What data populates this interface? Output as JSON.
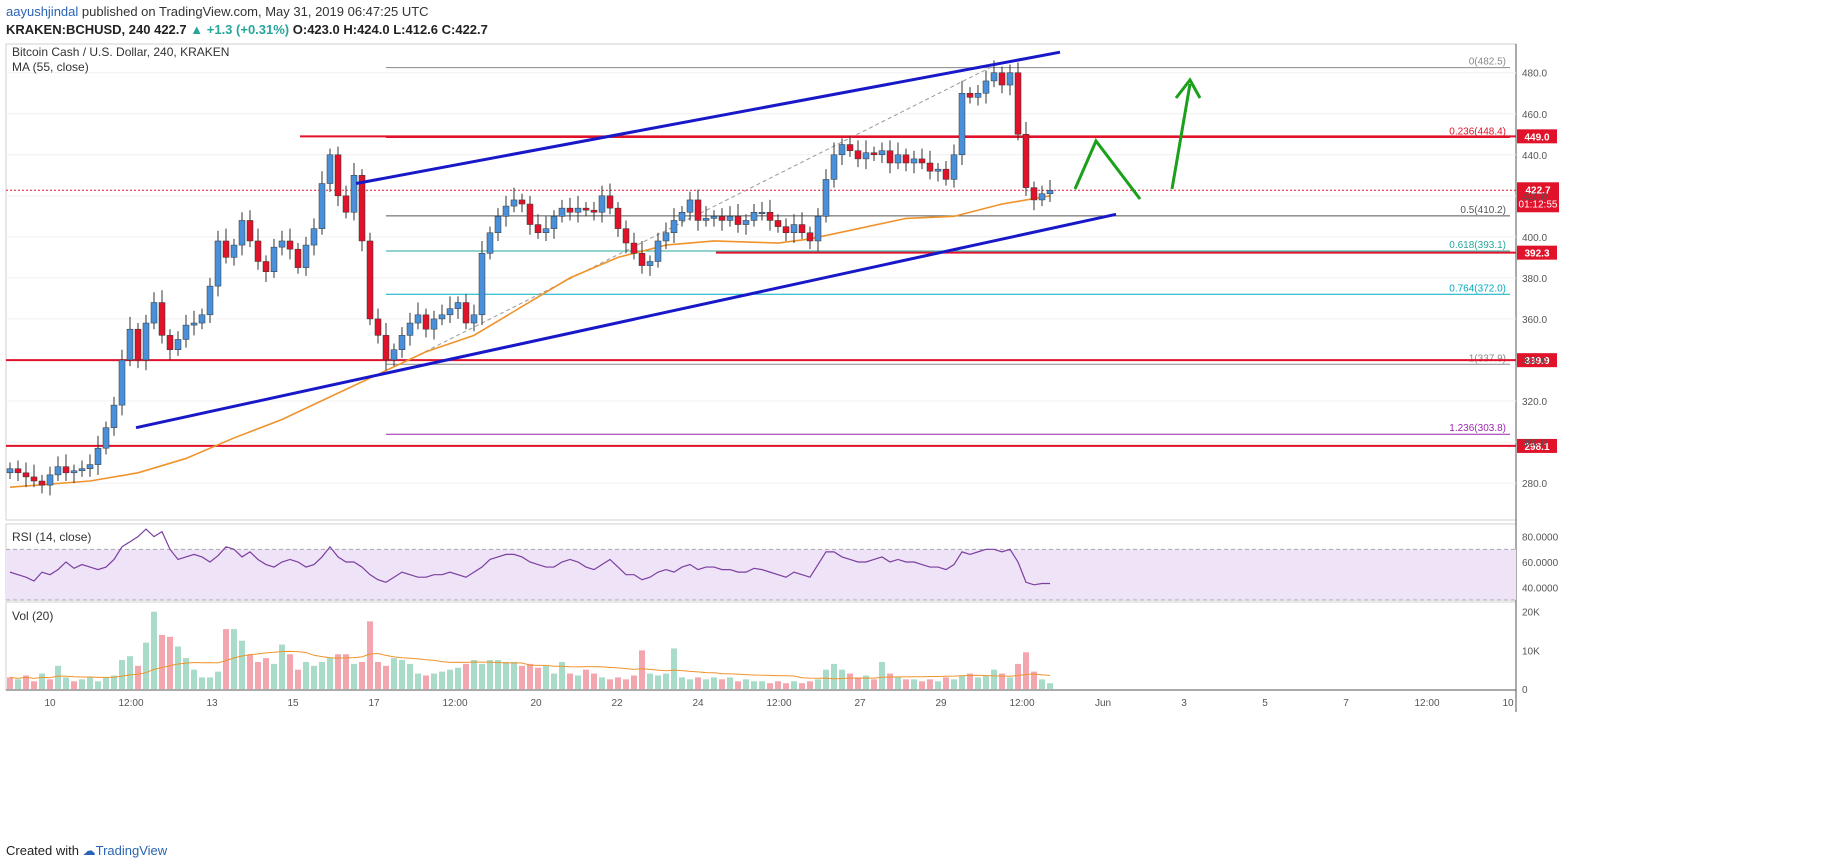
{
  "header": {
    "author": "aayushjindal",
    "published": "published on TradingView.com, May 31, 2019 06:47:25 UTC",
    "symbol": "KRAKEN:BCHUSD, 240",
    "last": "422.7",
    "change": "▲ +1.3 (+0.31%)",
    "ohlc": "O:423.0 H:424.0 L:412.6 C:422.7"
  },
  "footer": {
    "created_with": "Created with",
    "brand": "TradingView"
  },
  "colors": {
    "up": "#4a90d9",
    "down": "#e0132b",
    "ma": "#f0932b",
    "trend": "#1818c8",
    "arrow": "#1aa01a",
    "level": "#e0132b",
    "rsi": "#7b3fa0",
    "vol_up": "#a8dcc8",
    "vol_down": "#f4a6ae"
  },
  "chart_data": [
    {
      "type": "candlestick",
      "title": "Bitcoin Cash / U.S. Dollar, 240, KRAKEN",
      "indicator": "MA (55, close)",
      "ylim": [
        262,
        494
      ],
      "x_ticks": [
        "10",
        "12:00",
        "13",
        "15",
        "17",
        "12:00",
        "20",
        "22",
        "24",
        "12:00",
        "27",
        "29",
        "12:00",
        "Jun",
        "3",
        "5",
        "7",
        "12:00",
        "10"
      ],
      "y_ticks": [
        "280.0",
        "300.0",
        "320.0",
        "340.0",
        "360.0",
        "380.0",
        "400.0",
        "420.0",
        "440.0",
        "460.0",
        "480.0"
      ],
      "candles_close": [
        287,
        285,
        283,
        281,
        279,
        284,
        288,
        285,
        286,
        287,
        289,
        297,
        307,
        318,
        340,
        355,
        340,
        358,
        368,
        352,
        345,
        350,
        357,
        358,
        362,
        376,
        398,
        390,
        396,
        408,
        398,
        388,
        383,
        395,
        398,
        394,
        385,
        396,
        404,
        426,
        440,
        420,
        412,
        430,
        398,
        360,
        352,
        340,
        345,
        352,
        358,
        362,
        355,
        360,
        362,
        365,
        368,
        358,
        362,
        392,
        402,
        410,
        415,
        418,
        416,
        406,
        402,
        404,
        410,
        414,
        412,
        414,
        413,
        412,
        420,
        414,
        404,
        397,
        392,
        386,
        388,
        398,
        402,
        408,
        412,
        418,
        408,
        409,
        410,
        408,
        410,
        406,
        408,
        412,
        412,
        408,
        405,
        402,
        406,
        402,
        398,
        410,
        428,
        440,
        445,
        442,
        438,
        441,
        440,
        442,
        436,
        440,
        436,
        438,
        436,
        432,
        433,
        428,
        440,
        470,
        468,
        470,
        476,
        480,
        474,
        480,
        450,
        424,
        418,
        421,
        422.7
      ],
      "ma_55": [
        {
          "i": 0,
          "v": 278
        },
        {
          "i": 10,
          "v": 281
        },
        {
          "i": 16,
          "v": 285
        },
        {
          "i": 22,
          "v": 292
        },
        {
          "i": 28,
          "v": 302
        },
        {
          "i": 34,
          "v": 311
        },
        {
          "i": 40,
          "v": 322
        },
        {
          "i": 46,
          "v": 333
        },
        {
          "i": 52,
          "v": 344
        },
        {
          "i": 58,
          "v": 352
        },
        {
          "i": 64,
          "v": 366
        },
        {
          "i": 70,
          "v": 380
        },
        {
          "i": 76,
          "v": 390
        },
        {
          "i": 82,
          "v": 396
        },
        {
          "i": 88,
          "v": 398
        },
        {
          "i": 96,
          "v": 397
        },
        {
          "i": 100,
          "v": 399
        },
        {
          "i": 106,
          "v": 404
        },
        {
          "i": 112,
          "v": 409
        },
        {
          "i": 118,
          "v": 410
        },
        {
          "i": 124,
          "v": 416
        },
        {
          "i": 130,
          "v": 420
        }
      ],
      "horizontal_levels": [
        {
          "price": 449.0,
          "label": "449.0"
        },
        {
          "price": 392.3,
          "label": "392.3"
        },
        {
          "price": 339.9,
          "label": "339.9"
        },
        {
          "price": 298.1,
          "label": "298.1"
        }
      ],
      "current_price": {
        "price": 422.7,
        "label": "422.7",
        "countdown": "01:12:55"
      },
      "fibonacci": [
        {
          "level": "0",
          "price": 482.5,
          "label": "0(482.5)"
        },
        {
          "level": "0.236",
          "price": 448.4,
          "label": "0.236(448.4)"
        },
        {
          "level": "0.5",
          "price": 410.2,
          "label": "0.5(410.2)"
        },
        {
          "level": "0.618",
          "price": 393.1,
          "label": "0.618(393.1)"
        },
        {
          "level": "0.764",
          "price": 372.0,
          "label": "0.764(372.0)"
        },
        {
          "level": "1",
          "price": 337.9,
          "label": "1(337.9)"
        },
        {
          "level": "1.236",
          "price": 303.8,
          "label": "1.236(303.8)"
        }
      ]
    },
    {
      "type": "line",
      "title": "RSI (14, close)",
      "ylim": [
        30,
        90
      ],
      "y_ticks": [
        "80.0000",
        "60.0000",
        "40.0000"
      ],
      "values": [
        52,
        50,
        48,
        45,
        52,
        50,
        54,
        60,
        55,
        58,
        56,
        54,
        56,
        62,
        72,
        76,
        80,
        86,
        80,
        84,
        70,
        62,
        64,
        66,
        64,
        60,
        65,
        72,
        70,
        64,
        68,
        62,
        58,
        56,
        60,
        62,
        60,
        56,
        58,
        64,
        72,
        64,
        60,
        60,
        56,
        50,
        46,
        44,
        48,
        52,
        50,
        48,
        48,
        50,
        50,
        52,
        50,
        48,
        52,
        56,
        62,
        64,
        66,
        66,
        64,
        60,
        58,
        56,
        56,
        60,
        62,
        60,
        56,
        54,
        58,
        62,
        56,
        50,
        50,
        46,
        48,
        52,
        54,
        52,
        56,
        58,
        54,
        56,
        56,
        54,
        54,
        52,
        52,
        55,
        54,
        52,
        50,
        48,
        52,
        50,
        48,
        58,
        68,
        68,
        64,
        62,
        60,
        60,
        62,
        64,
        60,
        62,
        60,
        60,
        58,
        56,
        56,
        54,
        58,
        68,
        66,
        68,
        70,
        70,
        68,
        70,
        60,
        44,
        42,
        43,
        43
      ]
    },
    {
      "type": "bar",
      "title": "Vol (20)",
      "ylim": [
        0,
        22000
      ],
      "y_ticks": [
        "20K",
        "10K",
        "0"
      ],
      "values": [
        3000,
        2500,
        3500,
        2000,
        4000,
        2500,
        6000,
        3000,
        2000,
        2500,
        3000,
        2000,
        3000,
        3500,
        7500,
        8500,
        6000,
        12000,
        20000,
        14000,
        13500,
        11000,
        8000,
        5000,
        3000,
        3000,
        4500,
        15500,
        15500,
        12500,
        9000,
        7000,
        8000,
        6500,
        11500,
        9000,
        5000,
        7000,
        6000,
        7000,
        8000,
        9000,
        9000,
        6500,
        7000,
        17500,
        7000,
        6000,
        8000,
        7500,
        6500,
        4000,
        3500,
        4000,
        4500,
        5000,
        5500,
        6500,
        7500,
        6500,
        7500,
        7500,
        7000,
        7000,
        6000,
        6500,
        5500,
        6000,
        4000,
        7000,
        4000,
        3500,
        5000,
        4000,
        3000,
        2500,
        3000,
        2500,
        3500,
        10000,
        4000,
        3500,
        4000,
        10500,
        3000,
        2500,
        3000,
        2500,
        3000,
        2500,
        3000,
        2000,
        2500,
        2000,
        2000,
        1500,
        2000,
        1500,
        2000,
        1500,
        2000,
        2500,
        5000,
        6500,
        5000,
        4000,
        3000,
        3500,
        2500,
        7000,
        4000,
        3000,
        2500,
        2500,
        2000,
        2500,
        2000,
        3000,
        2500,
        3500,
        4000,
        3000,
        3500,
        5000,
        4000,
        3000,
        6500,
        9500,
        4500,
        2500,
        1500
      ],
      "up": [
        0,
        1,
        0,
        0,
        1,
        0,
        1,
        1,
        0,
        1,
        1,
        1,
        1,
        1,
        1,
        1,
        0,
        1,
        1,
        0,
        0,
        1,
        1,
        1,
        1,
        1,
        1,
        0,
        1,
        1,
        0,
        0,
        0,
        1,
        1,
        0,
        0,
        1,
        1,
        1,
        1,
        0,
        0,
        1,
        0,
        0,
        0,
        0,
        1,
        1,
        1,
        1,
        0,
        1,
        1,
        1,
        1,
        0,
        1,
        1,
        1,
        1,
        1,
        1,
        0,
        0,
        0,
        1,
        1,
        1,
        0,
        1,
        0,
        0,
        1,
        0,
        0,
        0,
        0,
        0,
        1,
        1,
        1,
        1,
        1,
        1,
        0,
        1,
        1,
        0,
        1,
        0,
        1,
        1,
        1,
        0,
        0,
        0,
        1,
        0,
        0,
        1,
        1,
        1,
        1,
        0,
        0,
        1,
        0,
        1,
        0,
        1,
        0,
        1,
        0,
        0,
        1,
        0,
        1,
        1,
        0,
        1,
        1,
        1,
        0,
        1,
        0,
        0,
        0,
        1,
        1
      ]
    }
  ]
}
